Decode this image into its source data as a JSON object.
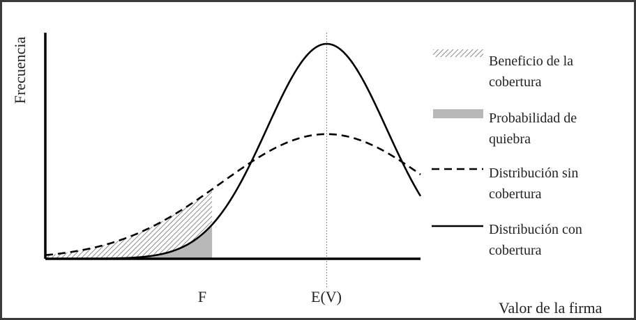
{
  "chart_data": {
    "type": "line",
    "ylabel": "Frecuencia",
    "xlabel": "Valor de la firma",
    "x_ticks": [
      {
        "label": "F",
        "x": 4.8
      },
      {
        "label": "E(V)",
        "x": 8.1
      }
    ],
    "xlim": [
      0,
      10.8
    ],
    "ylim": [
      0,
      1.0
    ],
    "series": [
      {
        "name": "Distribución sin cobertura",
        "style": "dashed",
        "color": "#000000",
        "mean": 8.1,
        "sd": 3.05,
        "peak": 0.58,
        "x_range": [
          0,
          10.8
        ]
      },
      {
        "name": "Distribución con cobertura",
        "style": "solid",
        "color": "#000000",
        "mean": 8.1,
        "sd": 1.72,
        "peak": 1.0,
        "x_range": [
          0,
          10.8
        ]
      }
    ],
    "shaded_regions": [
      {
        "name": "Beneficio de la cobertura",
        "x_range": [
          0,
          4.8
        ],
        "between": [
          "Distribución sin cobertura",
          "Distribución con cobertura"
        ],
        "fill": "hatched"
      },
      {
        "name": "Probabilidad de quiebra",
        "x_range": [
          0,
          4.8
        ],
        "under": "Distribución con cobertura",
        "fill": "#b8b8b8"
      }
    ],
    "reference_lines": [
      {
        "x": 8.1,
        "style": "dotted",
        "color": "#888888"
      }
    ]
  },
  "legend": [
    {
      "key": "hatch",
      "line1": "Beneficio de la",
      "line2": "cobertura"
    },
    {
      "key": "gray",
      "line1": "Probabilidad de",
      "line2": "quiebra"
    },
    {
      "key": "dashed",
      "line1": "Distribución sin",
      "line2": "cobertura"
    },
    {
      "key": "solid",
      "line1": "Distribución con",
      "line2": "cobertura"
    }
  ]
}
